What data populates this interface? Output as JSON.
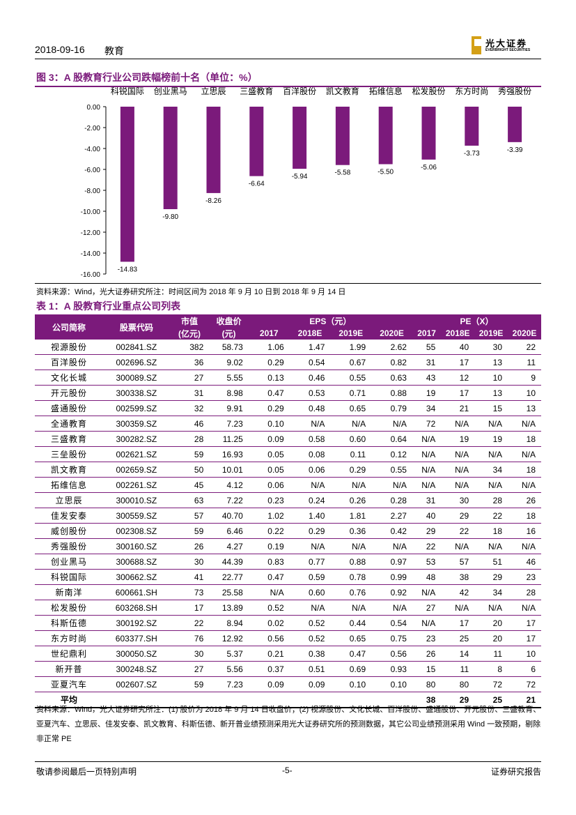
{
  "header": {
    "date": "2018-09-16",
    "section": "教育",
    "logo_cn": "光大证券",
    "logo_en": "EVERBRIGHT SECURITIES"
  },
  "figure": {
    "title": "图 3：A 股教育行业公司跌幅榜前十名（单位：%）"
  },
  "chart_data": {
    "type": "bar",
    "categories": [
      "科锐国际",
      "创业黑马",
      "立思辰",
      "三盛教育",
      "百洋股份",
      "凯文教育",
      "拓维信息",
      "松发股份",
      "东方时尚",
      "秀强股份"
    ],
    "values": [
      -14.83,
      -9.8,
      -8.26,
      -6.64,
      -5.94,
      -5.58,
      -5.5,
      -5.06,
      -3.73,
      -3.39
    ],
    "data_labels": [
      "-14.83",
      "-9.80",
      "-8.26",
      "-6.64",
      "-5.94",
      "-5.58",
      "-5.50",
      "-5.06",
      "-3.73",
      "-3.39"
    ],
    "yticks": [
      "0.00",
      "-2.00",
      "-4.00",
      "-6.00",
      "-8.00",
      "-10.00",
      "-12.00",
      "-14.00",
      "-16.00"
    ],
    "ylim": [
      -16,
      0
    ],
    "bar_color": "#7b1a7b",
    "grid": false
  },
  "source1": "资料来源：Wind，光大证券研究所注：时间区间为 2018 年 9 月 10 日到 2018 年 9 月 14 日",
  "table": {
    "title": "表 1：A 股教育行业重点公司列表",
    "headers": {
      "name": "公司简称",
      "code": "股票代码",
      "mktcap": "市值",
      "mktcap_unit": "(亿元)",
      "close": "收盘价",
      "close_unit": "(元)",
      "eps": "EPS（元）",
      "pe": "PE（X）",
      "y2017": "2017",
      "y2018": "2018E",
      "y2019": "2019E",
      "y2020": "2020E",
      "p2017": "2017",
      "p2018": "2018E",
      "p2019": "2019E",
      "p2020": "2020E"
    },
    "rows": [
      [
        "视源股份",
        "002841.SZ",
        "382",
        "58.73",
        "1.06",
        "1.47",
        "1.99",
        "2.62",
        "55",
        "40",
        "30",
        "22"
      ],
      [
        "百洋股份",
        "002696.SZ",
        "36",
        "9.02",
        "0.29",
        "0.54",
        "0.67",
        "0.82",
        "31",
        "17",
        "13",
        "11"
      ],
      [
        "文化长城",
        "300089.SZ",
        "27",
        "5.55",
        "0.13",
        "0.46",
        "0.55",
        "0.63",
        "43",
        "12",
        "10",
        "9"
      ],
      [
        "开元股份",
        "300338.SZ",
        "31",
        "8.98",
        "0.47",
        "0.53",
        "0.71",
        "0.88",
        "19",
        "17",
        "13",
        "10"
      ],
      [
        "盛通股份",
        "002599.SZ",
        "32",
        "9.91",
        "0.29",
        "0.48",
        "0.65",
        "0.79",
        "34",
        "21",
        "15",
        "13"
      ],
      [
        "全通教育",
        "300359.SZ",
        "46",
        "7.23",
        "0.10",
        "N/A",
        "N/A",
        "N/A",
        "72",
        "N/A",
        "N/A",
        "N/A"
      ],
      [
        "三盛教育",
        "300282.SZ",
        "28",
        "11.25",
        "0.09",
        "0.58",
        "0.60",
        "0.64",
        "N/A",
        "19",
        "19",
        "18"
      ],
      [
        "三垒股份",
        "002621.SZ",
        "59",
        "16.93",
        "0.05",
        "0.08",
        "0.11",
        "0.12",
        "N/A",
        "N/A",
        "N/A",
        "N/A"
      ],
      [
        "凯文教育",
        "002659.SZ",
        "50",
        "10.01",
        "0.05",
        "0.06",
        "0.29",
        "0.55",
        "N/A",
        "N/A",
        "34",
        "18"
      ],
      [
        "拓维信息",
        "002261.SZ",
        "45",
        "4.12",
        "0.06",
        "N/A",
        "N/A",
        "N/A",
        "N/A",
        "N/A",
        "N/A",
        "N/A"
      ],
      [
        "立思辰",
        "300010.SZ",
        "63",
        "7.22",
        "0.23",
        "0.24",
        "0.26",
        "0.28",
        "31",
        "30",
        "28",
        "26"
      ],
      [
        "佳发安泰",
        "300559.SZ",
        "57",
        "40.70",
        "1.02",
        "1.40",
        "1.81",
        "2.27",
        "40",
        "29",
        "22",
        "18"
      ],
      [
        "威创股份",
        "002308.SZ",
        "59",
        "6.46",
        "0.22",
        "0.29",
        "0.36",
        "0.42",
        "29",
        "22",
        "18",
        "16"
      ],
      [
        "秀强股份",
        "300160.SZ",
        "26",
        "4.27",
        "0.19",
        "N/A",
        "N/A",
        "N/A",
        "22",
        "N/A",
        "N/A",
        "N/A"
      ],
      [
        "创业黑马",
        "300688.SZ",
        "30",
        "44.39",
        "0.83",
        "0.77",
        "0.88",
        "0.97",
        "53",
        "57",
        "51",
        "46"
      ],
      [
        "科锐国际",
        "300662.SZ",
        "41",
        "22.77",
        "0.47",
        "0.59",
        "0.78",
        "0.99",
        "48",
        "38",
        "29",
        "23"
      ],
      [
        "新南洋",
        "600661.SH",
        "73",
        "25.58",
        "N/A",
        "0.60",
        "0.76",
        "0.92",
        "N/A",
        "42",
        "34",
        "28"
      ],
      [
        "松发股份",
        "603268.SH",
        "17",
        "13.89",
        "0.52",
        "N/A",
        "N/A",
        "N/A",
        "27",
        "N/A",
        "N/A",
        "N/A"
      ],
      [
        "科斯伍德",
        "300192.SZ",
        "22",
        "8.94",
        "0.02",
        "0.52",
        "0.44",
        "0.54",
        "N/A",
        "17",
        "20",
        "17"
      ],
      [
        "东方时尚",
        "603377.SH",
        "76",
        "12.92",
        "0.56",
        "0.52",
        "0.65",
        "0.75",
        "23",
        "25",
        "20",
        "17"
      ],
      [
        "世纪鼎利",
        "300050.SZ",
        "30",
        "5.37",
        "0.21",
        "0.38",
        "0.47",
        "0.56",
        "26",
        "14",
        "11",
        "10"
      ],
      [
        "新开普",
        "300248.SZ",
        "27",
        "5.56",
        "0.37",
        "0.51",
        "0.69",
        "0.93",
        "15",
        "11",
        "8",
        "6"
      ],
      [
        "亚夏汽车",
        "002607.SZ",
        "59",
        "7.23",
        "0.09",
        "0.09",
        "0.10",
        "0.10",
        "80",
        "80",
        "72",
        "72"
      ]
    ],
    "avg": {
      "label": "平均",
      "p2017": "38",
      "p2018": "29",
      "p2019": "25",
      "p2020": "21"
    }
  },
  "note": "资料来源：Wind，光大证券研究所注：(1) 股价为 2018 年 9 月 14 日收盘价；(2) 视源股份、文化长城、百洋股份、盛通股份、开元股份、三盛教育、亚夏汽车、立思辰、佳发安泰、凯文教育、科斯伍德、新开普业绩预测采用光大证券研究所的预测数据，其它公司业绩预测采用 Wind 一致预期，剔除非正常 PE",
  "footer": {
    "left": "敬请参阅最后一页特别声明",
    "center": "-5-",
    "right": "证券研究报告"
  }
}
